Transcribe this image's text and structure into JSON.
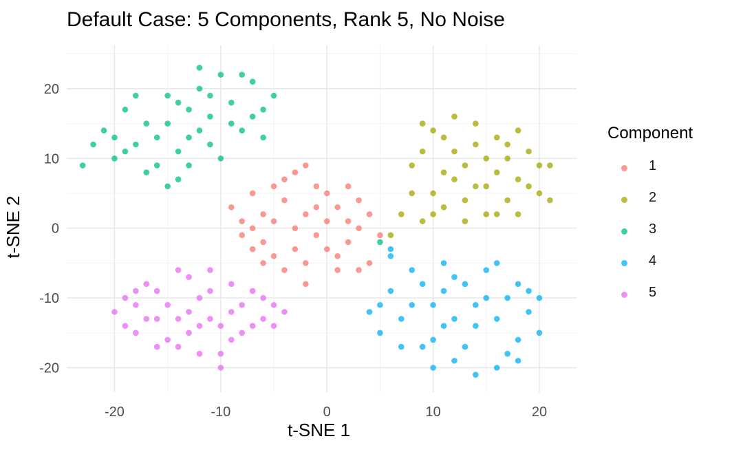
{
  "chart_data": {
    "type": "scatter",
    "title": "Default Case: 5 Components, Rank 5, No Noise",
    "xlabel": "t-SNE 1",
    "ylabel": "t-SNE 2",
    "xlim": [
      -24.5,
      23.5
    ],
    "ylim": [
      -23.5,
      26.2
    ],
    "x_ticks": [
      -20,
      -10,
      0,
      10,
      20
    ],
    "y_ticks": [
      -20,
      -10,
      0,
      10,
      20
    ],
    "x_tick_labels": [
      "-20",
      "-10",
      "0",
      "10",
      "20"
    ],
    "y_tick_labels": [
      "-20",
      "-10",
      "0",
      "10",
      "20"
    ],
    "grid": true,
    "legend_position": "right",
    "legend_title": "Component",
    "series": [
      {
        "name": "1",
        "color": "#F8766D",
        "points": [
          [
            -9,
            3
          ],
          [
            -8,
            1
          ],
          [
            -7,
            5
          ],
          [
            -6,
            -2
          ],
          [
            -5,
            6
          ],
          [
            -4,
            -6
          ],
          [
            -3,
            8
          ],
          [
            -2,
            -5
          ],
          [
            -1,
            3
          ],
          [
            0,
            1
          ],
          [
            1,
            -4
          ],
          [
            2,
            6
          ],
          [
            3,
            -6
          ],
          [
            4,
            2
          ],
          [
            -8,
            -1
          ],
          [
            -7,
            -3
          ],
          [
            -6,
            2
          ],
          [
            -5,
            -4
          ],
          [
            -4,
            4
          ],
          [
            -3,
            0
          ],
          [
            -2,
            2
          ],
          [
            -1,
            -1
          ],
          [
            0,
            5
          ],
          [
            1,
            3
          ],
          [
            2,
            -2
          ],
          [
            3,
            4
          ],
          [
            -7,
            0
          ],
          [
            -5,
            1
          ],
          [
            -3,
            -3
          ],
          [
            -1,
            6
          ],
          [
            1,
            -6
          ],
          [
            3,
            0
          ],
          [
            -4,
            7
          ],
          [
            -2,
            9
          ],
          [
            0,
            -3
          ],
          [
            2,
            1
          ],
          [
            5,
            -1
          ],
          [
            -6,
            -5
          ],
          [
            -2,
            -8
          ],
          [
            4,
            -5
          ]
        ]
      },
      {
        "name": "2",
        "color": "#A3A500",
        "points": [
          [
            6,
            -1
          ],
          [
            7,
            2
          ],
          [
            8,
            9
          ],
          [
            9,
            15
          ],
          [
            10,
            5
          ],
          [
            11,
            13
          ],
          [
            12,
            16
          ],
          [
            13,
            9
          ],
          [
            14,
            12
          ],
          [
            15,
            6
          ],
          [
            16,
            2
          ],
          [
            17,
            10
          ],
          [
            18,
            14
          ],
          [
            19,
            6
          ],
          [
            20,
            9
          ],
          [
            21,
            4
          ],
          [
            9,
            11
          ],
          [
            10,
            2
          ],
          [
            11,
            8
          ],
          [
            12,
            11
          ],
          [
            13,
            4
          ],
          [
            14,
            15
          ],
          [
            15,
            10
          ],
          [
            16,
            13
          ],
          [
            17,
            4
          ],
          [
            18,
            7
          ],
          [
            19,
            11
          ],
          [
            13,
            1
          ],
          [
            15,
            2
          ],
          [
            11,
            3
          ],
          [
            12,
            7
          ],
          [
            16,
            8
          ],
          [
            18,
            2
          ],
          [
            8,
            5
          ],
          [
            20,
            5
          ],
          [
            10,
            14
          ],
          [
            14,
            6
          ],
          [
            17,
            12
          ],
          [
            9,
            1
          ],
          [
            21,
            9
          ]
        ]
      },
      {
        "name": "3",
        "color": "#00BF7D",
        "points": [
          [
            -23,
            9
          ],
          [
            -22,
            12
          ],
          [
            -21,
            14
          ],
          [
            -20,
            10
          ],
          [
            -19,
            17
          ],
          [
            -18,
            12
          ],
          [
            -17,
            15
          ],
          [
            -16,
            9
          ],
          [
            -15,
            19
          ],
          [
            -14,
            7
          ],
          [
            -13,
            13
          ],
          [
            -12,
            20
          ],
          [
            -11,
            16
          ],
          [
            -10,
            10
          ],
          [
            -9,
            18
          ],
          [
            -8,
            14
          ],
          [
            -7,
            21
          ],
          [
            -6,
            17
          ],
          [
            -5,
            19
          ],
          [
            -12,
            23
          ],
          [
            -10,
            22
          ],
          [
            -14,
            11
          ],
          [
            -16,
            13
          ],
          [
            -18,
            19
          ],
          [
            -20,
            13
          ],
          [
            -15,
            6
          ],
          [
            -13,
            17
          ],
          [
            -11,
            12
          ],
          [
            -9,
            15
          ],
          [
            -7,
            16
          ],
          [
            -17,
            8
          ],
          [
            -15,
            15
          ],
          [
            -13,
            9
          ],
          [
            -11,
            19
          ],
          [
            -8,
            22
          ],
          [
            -6,
            13
          ],
          [
            -19,
            11
          ],
          [
            -14,
            18
          ],
          [
            -12,
            14
          ],
          [
            5,
            -2
          ]
        ]
      },
      {
        "name": "4",
        "color": "#00B0F6",
        "points": [
          [
            4,
            -12
          ],
          [
            5,
            -15
          ],
          [
            6,
            -9
          ],
          [
            7,
            -13
          ],
          [
            8,
            -6
          ],
          [
            9,
            -17
          ],
          [
            10,
            -11
          ],
          [
            11,
            -5
          ],
          [
            12,
            -19
          ],
          [
            13,
            -8
          ],
          [
            14,
            -14
          ],
          [
            15,
            -6
          ],
          [
            16,
            -20
          ],
          [
            17,
            -10
          ],
          [
            18,
            -16
          ],
          [
            19,
            -12
          ],
          [
            20,
            -15
          ],
          [
            6,
            -4
          ],
          [
            8,
            -11
          ],
          [
            10,
            -16
          ],
          [
            12,
            -7
          ],
          [
            14,
            -11
          ],
          [
            16,
            -13
          ],
          [
            18,
            -8
          ],
          [
            9,
            -8
          ],
          [
            11,
            -14
          ],
          [
            13,
            -17
          ],
          [
            15,
            -10
          ],
          [
            17,
            -18
          ],
          [
            19,
            -9
          ],
          [
            7,
            -17
          ],
          [
            5,
            -11
          ],
          [
            10,
            -20
          ],
          [
            14,
            -21
          ],
          [
            12,
            -13
          ],
          [
            16,
            -5
          ],
          [
            18,
            -19
          ],
          [
            20,
            -10
          ],
          [
            11,
            -9
          ],
          [
            6,
            -3
          ]
        ]
      },
      {
        "name": "5",
        "color": "#E76BF3",
        "points": [
          [
            -20,
            -12
          ],
          [
            -19,
            -10
          ],
          [
            -18,
            -15
          ],
          [
            -17,
            -8
          ],
          [
            -16,
            -13
          ],
          [
            -15,
            -11
          ],
          [
            -14,
            -17
          ],
          [
            -13,
            -7
          ],
          [
            -12,
            -14
          ],
          [
            -11,
            -9
          ],
          [
            -10,
            -18
          ],
          [
            -9,
            -12
          ],
          [
            -8,
            -15
          ],
          [
            -7,
            -9
          ],
          [
            -6,
            -13
          ],
          [
            -5,
            -11
          ],
          [
            -4,
            -12
          ],
          [
            -18,
            -11
          ],
          [
            -16,
            -9
          ],
          [
            -14,
            -13
          ],
          [
            -12,
            -10
          ],
          [
            -10,
            -14
          ],
          [
            -8,
            -11
          ],
          [
            -6,
            -10
          ],
          [
            -15,
            -16
          ],
          [
            -13,
            -15
          ],
          [
            -11,
            -13
          ],
          [
            -9,
            -16
          ],
          [
            -7,
            -14
          ],
          [
            -17,
            -13
          ],
          [
            -19,
            -14
          ],
          [
            -16,
            -17
          ],
          [
            -12,
            -18
          ],
          [
            -10,
            -20
          ],
          [
            -14,
            -6
          ],
          [
            -11,
            -6
          ],
          [
            -9,
            -8
          ],
          [
            -5,
            -14
          ],
          [
            -18,
            -9
          ],
          [
            -13,
            -12
          ]
        ]
      }
    ]
  }
}
